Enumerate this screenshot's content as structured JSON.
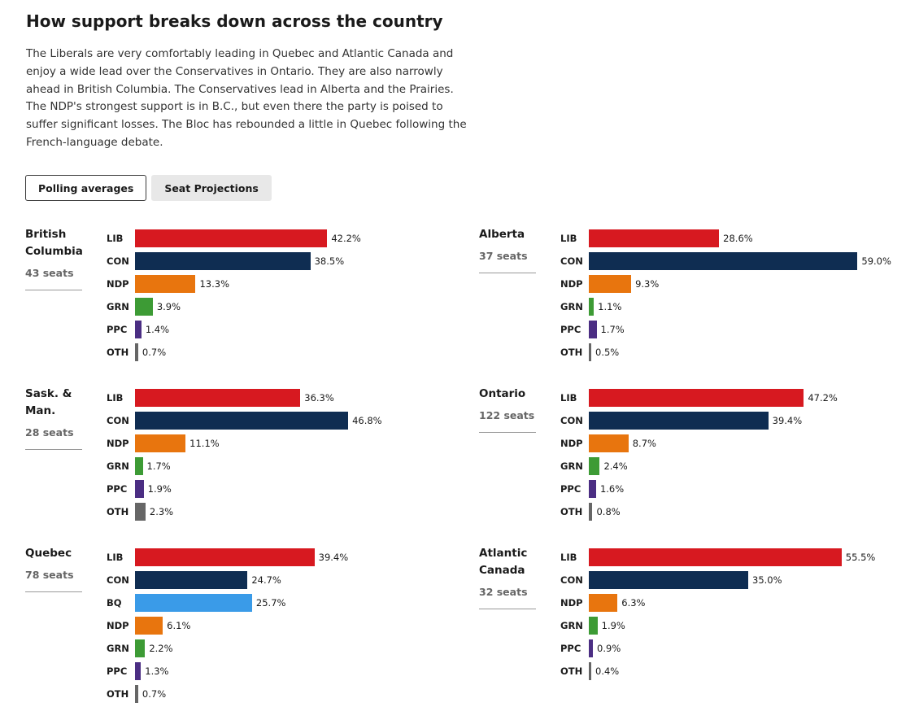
{
  "title": "How support breaks down across the country",
  "description": "The Liberals are very comfortably leading in Quebec and Atlantic Canada and enjoy a wide lead over the Conservatives in Ontario. They are also narrowly ahead in British Columbia. The Conservatives lead in Alberta and the Prairies. The NDP's strongest support is in B.C., but even there the party is poised to suffer significant losses. The Bloc has rebounded a little in Quebec following the French-language debate.",
  "tabs": {
    "polling_label": "Polling averages",
    "seats_label": "Seat Projections",
    "active": "polling"
  },
  "party_colors": {
    "LIB": "#d71920",
    "CON": "#0f2d52",
    "NDP": "#e8750e",
    "GRN": "#3d9b35",
    "PPC": "#4b2e83",
    "OTH": "#666666",
    "BQ": "#3a9be8"
  },
  "chart_data": [
    {
      "type": "bar",
      "region": "British Columbia",
      "seats": "43 seats",
      "categories": [
        "LIB",
        "CON",
        "NDP",
        "GRN",
        "PPC",
        "OTH"
      ],
      "values": [
        42.2,
        38.5,
        13.3,
        3.9,
        1.4,
        0.7
      ],
      "labels": [
        "42.2%",
        "38.5%",
        "13.3%",
        "3.9%",
        "1.4%",
        "0.7%"
      ]
    },
    {
      "type": "bar",
      "region": "Alberta",
      "seats": "37 seats",
      "categories": [
        "LIB",
        "CON",
        "NDP",
        "GRN",
        "PPC",
        "OTH"
      ],
      "values": [
        28.6,
        59.0,
        9.3,
        1.1,
        1.7,
        0.5
      ],
      "labels": [
        "28.6%",
        "59.0%",
        "9.3%",
        "1.1%",
        "1.7%",
        "0.5%"
      ]
    },
    {
      "type": "bar",
      "region": "Sask. & Man.",
      "seats": "28 seats",
      "categories": [
        "LIB",
        "CON",
        "NDP",
        "GRN",
        "PPC",
        "OTH"
      ],
      "values": [
        36.3,
        46.8,
        11.1,
        1.7,
        1.9,
        2.3
      ],
      "labels": [
        "36.3%",
        "46.8%",
        "11.1%",
        "1.7%",
        "1.9%",
        "2.3%"
      ]
    },
    {
      "type": "bar",
      "region": "Ontario",
      "seats": "122 seats",
      "categories": [
        "LIB",
        "CON",
        "NDP",
        "GRN",
        "PPC",
        "OTH"
      ],
      "values": [
        47.2,
        39.4,
        8.7,
        2.4,
        1.6,
        0.8
      ],
      "labels": [
        "47.2%",
        "39.4%",
        "8.7%",
        "2.4%",
        "1.6%",
        "0.8%"
      ]
    },
    {
      "type": "bar",
      "region": "Quebec",
      "seats": "78 seats",
      "categories": [
        "LIB",
        "CON",
        "BQ",
        "NDP",
        "GRN",
        "PPC",
        "OTH"
      ],
      "values": [
        39.4,
        24.7,
        25.7,
        6.1,
        2.2,
        1.3,
        0.7
      ],
      "labels": [
        "39.4%",
        "24.7%",
        "25.7%",
        "6.1%",
        "2.2%",
        "1.3%",
        "0.7%"
      ]
    },
    {
      "type": "bar",
      "region": "Atlantic Canada",
      "seats": "32 seats",
      "categories": [
        "LIB",
        "CON",
        "NDP",
        "GRN",
        "PPC",
        "OTH"
      ],
      "values": [
        55.5,
        35.0,
        6.3,
        1.9,
        0.9,
        0.4
      ],
      "labels": [
        "55.5%",
        "35.0%",
        "6.3%",
        "1.9%",
        "0.9%",
        "0.4%"
      ]
    }
  ]
}
